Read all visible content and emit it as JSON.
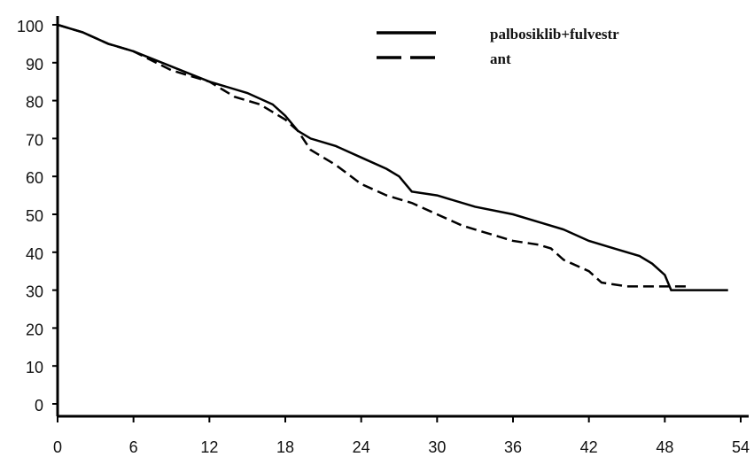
{
  "chart_data": {
    "type": "line",
    "x": [
      0,
      54
    ],
    "series": [
      {
        "name": "palbosiklib+fulvestr",
        "color": "#000000",
        "dash": false,
        "x": [
          0,
          2,
          4,
          6,
          9,
          12,
          15,
          17,
          18,
          19,
          20,
          22,
          24,
          26,
          27,
          28,
          30,
          33,
          36,
          38,
          40,
          42,
          44,
          46,
          47,
          48,
          48.5,
          53
        ],
        "values": [
          100,
          98,
          95,
          93,
          89,
          85,
          82,
          79,
          76,
          72,
          70,
          68,
          65,
          62,
          60,
          56,
          55,
          52,
          50,
          48,
          46,
          43,
          41,
          39,
          37,
          34,
          30,
          30
        ]
      },
      {
        "name": "ant",
        "color": "#000000",
        "dash": true,
        "x": [
          0,
          2,
          4,
          6,
          9,
          12,
          14,
          16,
          18,
          19,
          20,
          22,
          24,
          26,
          28,
          30,
          32,
          34,
          36,
          38,
          39,
          40,
          42,
          43,
          45,
          49,
          50
        ],
        "values": [
          100,
          98,
          95,
          93,
          88,
          85,
          81,
          79,
          75,
          72,
          67,
          63,
          58,
          55,
          53,
          50,
          47,
          45,
          43,
          42,
          41,
          38,
          35,
          32,
          31,
          31,
          31
        ]
      }
    ],
    "xlim": [
      0,
      54
    ],
    "xticks": [
      0,
      6,
      12,
      18,
      24,
      30,
      36,
      42,
      48,
      54
    ],
    "ylim": [
      0,
      100
    ],
    "yticks": [
      0,
      10,
      20,
      30,
      40,
      50,
      60,
      70,
      80,
      90,
      100
    ]
  }
}
